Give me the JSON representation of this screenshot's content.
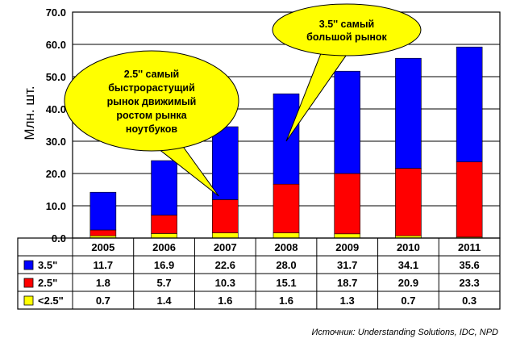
{
  "chart_data": {
    "type": "bar",
    "stacked": true,
    "title": "",
    "xlabel": "",
    "ylabel": "Млн. шт.",
    "ylim": [
      0,
      70
    ],
    "y_ticks": [
      "0.0",
      "10.0",
      "20.0",
      "30.0",
      "40.0",
      "50.0",
      "60.0",
      "70.0"
    ],
    "grid": true,
    "categories": [
      "2005",
      "2006",
      "2007",
      "2008",
      "2009",
      "2010",
      "2011"
    ],
    "series": [
      {
        "name": "<2.5\"",
        "color": "#FFFF00",
        "values": [
          0.7,
          1.4,
          1.6,
          1.6,
          1.3,
          0.7,
          0.3
        ],
        "labels": [
          "0.7",
          "1.4",
          "1.6",
          "1.6",
          "1.3",
          "0.7",
          "0.3"
        ]
      },
      {
        "name": "2.5\"",
        "color": "#FF0000",
        "values": [
          1.8,
          5.7,
          10.3,
          15.1,
          18.7,
          20.9,
          23.3
        ],
        "labels": [
          "1.8",
          "5.7",
          "10.3",
          "15.1",
          "18.7",
          "20.9",
          "23.3"
        ]
      },
      {
        "name": "3.5\"",
        "color": "#0000FF",
        "values": [
          11.7,
          16.9,
          22.6,
          28.0,
          31.7,
          34.1,
          35.6
        ],
        "labels": [
          "11.7",
          "16.9",
          "22.6",
          "28.0",
          "31.7",
          "34.1",
          "35.6"
        ]
      }
    ],
    "table_order": [
      2,
      1,
      0
    ],
    "annotations": [
      {
        "text": "2.5'' самый быстрорастущий рынок движимый ростом рынка ноутбуков",
        "lines": [
          "2.5''  самый",
          "быстрорастущий",
          "рынок  движимый",
          "ростом рынка",
          "ноутбуков"
        ],
        "points_to": "2007"
      },
      {
        "text": "3.5'' самый большой рынок",
        "lines": [
          "3.5'' самый",
          "большой рынок"
        ],
        "points_to": "2008"
      }
    ],
    "callout_color": "#FFFF00"
  },
  "source_note": "Источник:  Understanding Solutions, IDC, NPD"
}
